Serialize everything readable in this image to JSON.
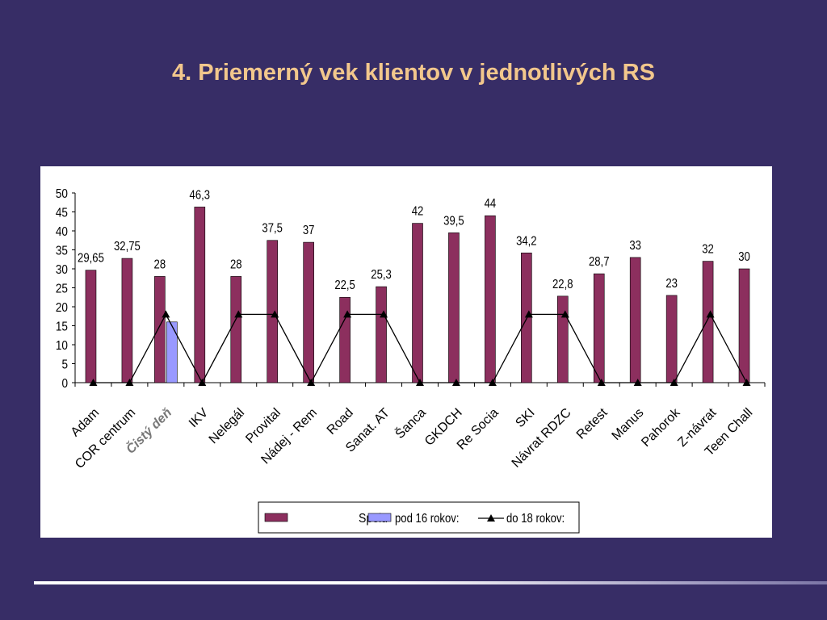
{
  "slide": {
    "title": "4. Priemerný vek klientov v jednotlivých RS"
  },
  "colors": {
    "background": "#372d66",
    "title": "#f2c78c",
    "spolu_bar": "#8c2f5e",
    "pod16_bar": "#9999ff",
    "line": "#000000"
  },
  "chart_data": {
    "type": "bar",
    "categories": [
      "Adam",
      "COR centrum",
      "Čistý deň",
      "IKV",
      "Nelegál",
      "Provital",
      "Nádej - Rem",
      "Road",
      "Sanat. AT",
      "Šanca",
      "GKDCH",
      "Re Socia",
      "SKI",
      "Návrat RDZC",
      "Retest",
      "Manus",
      "Pahorok",
      "Z-návrat",
      "Teen Chall"
    ],
    "ylim": [
      0,
      50
    ],
    "yticks": [
      "0",
      "5",
      "10",
      "15",
      "20",
      "25",
      "30",
      "35",
      "40",
      "45",
      "50"
    ],
    "grid": false,
    "legend_position": "bottom",
    "series": [
      {
        "name": "Spolu",
        "kind": "bar",
        "color": "#8c2f5e",
        "values": [
          29.65,
          32.75,
          28,
          46.3,
          28,
          37.5,
          37,
          22.5,
          25.3,
          42,
          39.5,
          44,
          34.2,
          22.8,
          28.7,
          33,
          23,
          32,
          30
        ],
        "labels": [
          "29,65",
          "32,75",
          "28",
          "46,3",
          "28",
          "37,5",
          "37",
          "22,5",
          "25,3",
          "42",
          "39,5",
          "44",
          "34,2",
          "22,8",
          "28,7",
          "33",
          "23",
          "32",
          "30"
        ]
      },
      {
        "name": "pod 16 rokov:",
        "kind": "bar",
        "color": "#9999ff",
        "values": [
          0,
          0,
          16,
          0,
          0,
          0,
          0,
          0,
          0,
          0,
          0,
          0,
          0,
          0,
          0,
          0,
          0,
          0,
          0
        ]
      },
      {
        "name": "do 18 rokov:",
        "kind": "line",
        "color": "#000000",
        "marker": "triangle",
        "values": [
          0,
          0,
          18,
          0,
          18,
          18,
          0,
          18,
          18,
          0,
          0,
          0,
          18,
          18,
          0,
          0,
          0,
          18,
          0
        ]
      }
    ]
  }
}
